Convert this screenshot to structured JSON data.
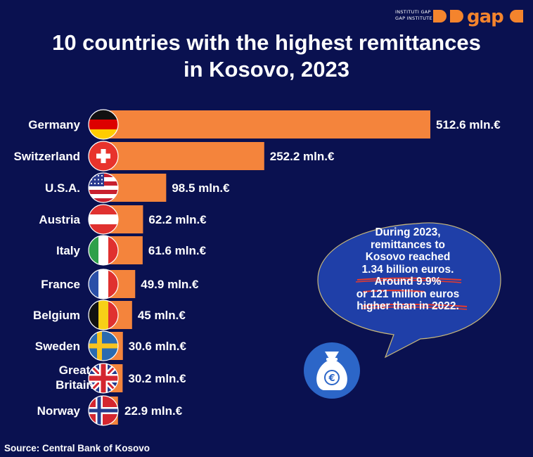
{
  "logo": {
    "line1": "INSTITUTI GAP",
    "line2": "GAP INSTITUTE",
    "mark": "gap"
  },
  "title": {
    "line1": "10 countries with the highest remittances",
    "line2": "in Kosovo, 2023"
  },
  "chart_data": {
    "type": "bar",
    "orientation": "horizontal",
    "categories": [
      "Germany",
      "Switzerland",
      "U.S.A.",
      "Austria",
      "Italy",
      "France",
      "Belgium",
      "Sweden",
      "Great Britain",
      "Norway"
    ],
    "category_lines": [
      [
        "Germany"
      ],
      [
        "Switzerland"
      ],
      [
        "U.S.A."
      ],
      [
        "Austria"
      ],
      [
        "Italy"
      ],
      [
        "France"
      ],
      [
        "Belgium"
      ],
      [
        "Sweden"
      ],
      [
        "Great",
        "Britain"
      ],
      [
        "Norway"
      ]
    ],
    "values": [
      512.6,
      252.2,
      98.5,
      62.2,
      61.6,
      49.9,
      45,
      30.6,
      30.2,
      22.9
    ],
    "value_labels": [
      "512.6 mln.€",
      "252.2 mln.€",
      "98.5 mln.€",
      "62.2 mln.€",
      "61.6 mln.€",
      "49.9 mln.€",
      "45 mln.€",
      "30.6 mln.€",
      "30.2 mln.€",
      "22.9 mln.€"
    ],
    "flags": [
      "germany-flag-icon",
      "switzerland-flag-icon",
      "usa-flag-icon",
      "austria-flag-icon",
      "italy-flag-icon",
      "france-flag-icon",
      "belgium-flag-icon",
      "sweden-flag-icon",
      "great-britain-flag-icon",
      "norway-flag-icon"
    ],
    "bar_color": "#f4843c",
    "grid": false,
    "xlabel": "",
    "ylabel": ""
  },
  "callout": {
    "lines": [
      "During 2023,",
      "remittances to",
      "Kosovo reached",
      "1.34 billion euros.",
      "Around 9.9%",
      "or 121 million euros",
      "higher than in 2022."
    ],
    "icon": "money-bag-euro-icon",
    "underline_color": "#e63b2e",
    "bubble_color": "#1f3fa8"
  },
  "source": "Source: Central Bank of Kosovo",
  "colors": {
    "background": "#0a1150",
    "bar": "#f4843c",
    "accent": "#f4842d"
  }
}
